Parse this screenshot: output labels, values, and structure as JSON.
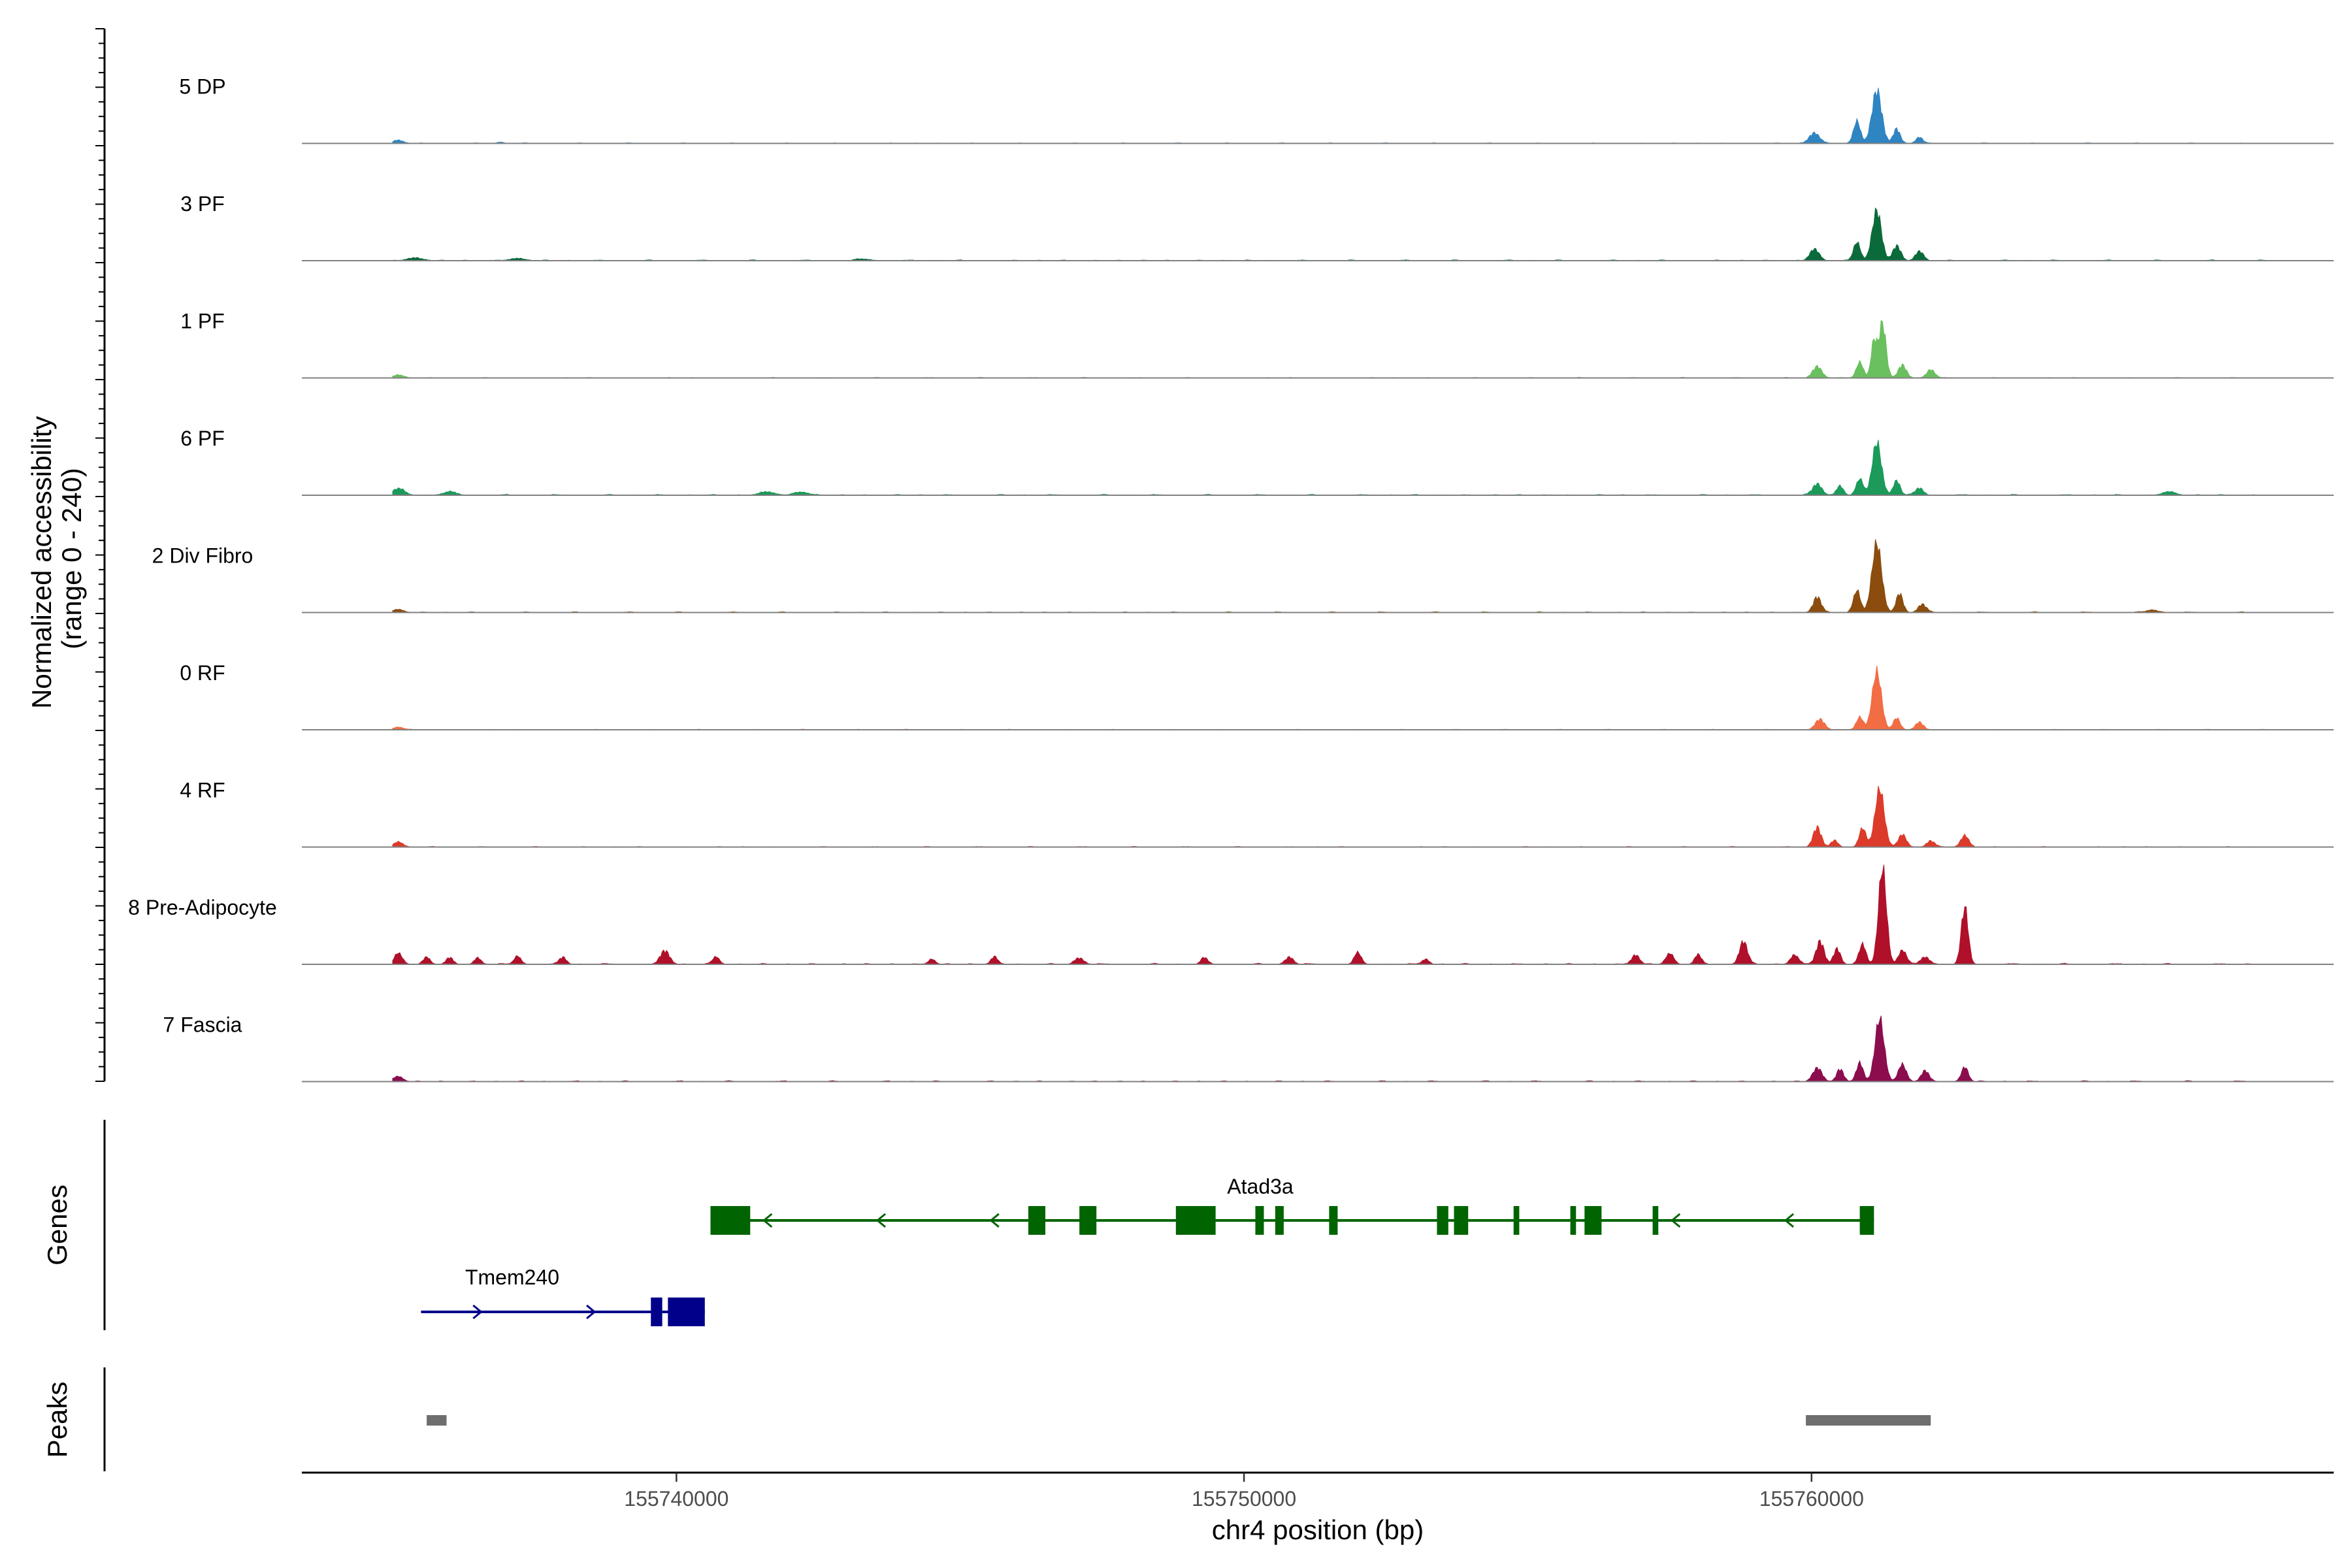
{
  "chart_data": {
    "type": "area",
    "title": "",
    "ylabel": "Normalized accessibility\n(range 0 - 240)",
    "ylim": [
      0,
      240
    ],
    "xlabel": "chr4 position (bp)",
    "xlim": [
      155733400,
      155769200
    ],
    "xticks": [
      155740000,
      155750000,
      155760000
    ],
    "xtick_labels": [
      "155740000",
      "155750000",
      "155760000"
    ],
    "gene_panel_label": "Genes",
    "peak_panel_label": "Peaks",
    "tracks": [
      {
        "name": "5 DP",
        "color": "#2f84c2",
        "peaks": [
          [
            155735100,
            6,
            90
          ],
          [
            155736900,
            2,
            70
          ],
          [
            155760050,
            20,
            90
          ],
          [
            155760800,
            42,
            60
          ],
          [
            155761150,
            100,
            85
          ],
          [
            155761500,
            28,
            60
          ],
          [
            155761900,
            12,
            60
          ]
        ],
        "baseline": 1.2
      },
      {
        "name": "3 PF",
        "color": "#0b6a3a",
        "peaks": [
          [
            155735400,
            5,
            140
          ],
          [
            155737200,
            4,
            140
          ],
          [
            155743300,
            3,
            120
          ],
          [
            155760050,
            22,
            80
          ],
          [
            155760800,
            35,
            60
          ],
          [
            155761150,
            95,
            80
          ],
          [
            155761500,
            28,
            70
          ],
          [
            155761900,
            18,
            70
          ]
        ],
        "baseline": 1.6
      },
      {
        "name": "1 PF",
        "color": "#6abf5e",
        "peaks": [
          [
            155735100,
            6,
            90
          ],
          [
            155760100,
            22,
            80
          ],
          [
            155760850,
            30,
            60
          ],
          [
            155761100,
            70,
            50
          ],
          [
            155761250,
            105,
            60
          ],
          [
            155761600,
            25,
            70
          ],
          [
            155762100,
            16,
            70
          ]
        ],
        "baseline": 1.2
      },
      {
        "name": "6 PF",
        "color": "#1b9a5a",
        "peaks": [
          [
            155735100,
            12,
            110
          ],
          [
            155736000,
            6,
            120
          ],
          [
            155741600,
            6,
            140
          ],
          [
            155742200,
            6,
            120
          ],
          [
            155760100,
            22,
            80
          ],
          [
            155760500,
            18,
            60
          ],
          [
            155760850,
            30,
            60
          ],
          [
            155761150,
            100,
            80
          ],
          [
            155761500,
            28,
            60
          ],
          [
            155761900,
            14,
            70
          ],
          [
            155766300,
            6,
            120
          ]
        ],
        "baseline": 1.8
      },
      {
        "name": "2 Div Fibro",
        "color": "#8b4c0e",
        "peaks": [
          [
            155735100,
            6,
            90
          ],
          [
            155760100,
            30,
            70
          ],
          [
            155760800,
            42,
            60
          ],
          [
            155761150,
            130,
            85
          ],
          [
            155761550,
            36,
            60
          ],
          [
            155761950,
            16,
            70
          ],
          [
            155766000,
            5,
            100
          ]
        ],
        "baseline": 1.5
      },
      {
        "name": "0 RF",
        "color": "#f26d44",
        "peaks": [
          [
            155735100,
            5,
            90
          ],
          [
            155760150,
            20,
            80
          ],
          [
            155760850,
            24,
            60
          ],
          [
            155761150,
            110,
            80
          ],
          [
            155761500,
            22,
            60
          ],
          [
            155761900,
            14,
            70
          ]
        ],
        "baseline": 1.0
      },
      {
        "name": "4 RF",
        "color": "#dc3b2b",
        "peaks": [
          [
            155735100,
            10,
            80
          ],
          [
            155760100,
            38,
            70
          ],
          [
            155760400,
            12,
            60
          ],
          [
            155760900,
            36,
            60
          ],
          [
            155761200,
            110,
            80
          ],
          [
            155761600,
            24,
            70
          ],
          [
            155762100,
            12,
            70
          ],
          [
            155762700,
            22,
            70
          ]
        ],
        "baseline": 1.3
      },
      {
        "name": "8 Pre-Adipocyte",
        "color": "#b0102a",
        "peaks": [
          [
            155735100,
            20,
            70
          ],
          [
            155735600,
            14,
            60
          ],
          [
            155736000,
            12,
            60
          ],
          [
            155736500,
            12,
            60
          ],
          [
            155737200,
            16,
            60
          ],
          [
            155738000,
            14,
            60
          ],
          [
            155739800,
            26,
            80
          ],
          [
            155740700,
            14,
            60
          ],
          [
            155744500,
            10,
            60
          ],
          [
            155745600,
            14,
            60
          ],
          [
            155747100,
            12,
            80
          ],
          [
            155749300,
            12,
            60
          ],
          [
            155750800,
            14,
            70
          ],
          [
            155752000,
            22,
            60
          ],
          [
            155753200,
            10,
            60
          ],
          [
            155756900,
            18,
            70
          ],
          [
            155757500,
            20,
            70
          ],
          [
            155758000,
            18,
            60
          ],
          [
            155758800,
            44,
            70
          ],
          [
            155759700,
            18,
            70
          ],
          [
            155760150,
            44,
            70
          ],
          [
            155760450,
            30,
            60
          ],
          [
            155760900,
            38,
            60
          ],
          [
            155761250,
            182,
            70
          ],
          [
            155761600,
            26,
            70
          ],
          [
            155762000,
            14,
            80
          ],
          [
            155762700,
            108,
            60
          ]
        ],
        "baseline": 2.0
      },
      {
        "name": "7 Fascia",
        "color": "#8b0d4e",
        "peaks": [
          [
            155735100,
            10,
            80
          ],
          [
            155760100,
            26,
            80
          ],
          [
            155760500,
            24,
            60
          ],
          [
            155760850,
            36,
            60
          ],
          [
            155761200,
            118,
            80
          ],
          [
            155761600,
            32,
            70
          ],
          [
            155762000,
            20,
            70
          ],
          [
            155762700,
            28,
            60
          ]
        ],
        "baseline": 1.8
      }
    ],
    "genes": [
      {
        "name": "Atad3a",
        "strand": "-",
        "color": "#006400",
        "start": 155740600,
        "end": 155761100,
        "exons": [
          [
            155740600,
            155741300
          ],
          [
            155746200,
            155746500
          ],
          [
            155747100,
            155747400
          ],
          [
            155748800,
            155749500
          ],
          [
            155750200,
            155750350
          ],
          [
            155750550,
            155750700
          ],
          [
            155751500,
            155751650
          ],
          [
            155753400,
            155753600
          ],
          [
            155753700,
            155753950
          ],
          [
            155754750,
            155754850
          ],
          [
            155755750,
            155755850
          ],
          [
            155756000,
            155756300
          ],
          [
            155757200,
            155757300
          ],
          [
            155760850,
            155761100
          ]
        ]
      },
      {
        "name": "Tmem240",
        "strand": "+",
        "color": "#00008b",
        "start": 155735500,
        "end": 155740500,
        "exons": [
          [
            155739550,
            155739750
          ],
          [
            155739850,
            155740500
          ]
        ]
      }
    ],
    "peak_regions": [
      [
        155735600,
        155735950
      ],
      [
        155759900,
        155762100
      ]
    ]
  }
}
